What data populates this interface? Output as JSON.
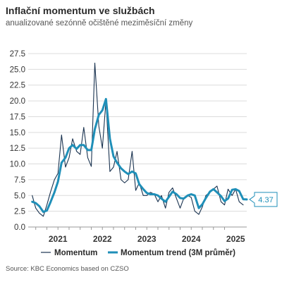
{
  "chart_data": {
    "type": "line",
    "title": "Inflační momentum ve službách",
    "subtitle": "anualizované sezónně očištěné meziměsíční změny",
    "source": "Source: KBC Economics based on CZSO",
    "y_ticks": [
      "0.0",
      "2.5",
      "5.0",
      "7.5",
      "10.0",
      "12.5",
      "15.0",
      "17.5",
      "20.0",
      "22.5",
      "25.0",
      "27.5"
    ],
    "ylim": [
      0,
      27.5
    ],
    "x_range": [
      2020.33,
      2025.25
    ],
    "x_ticks": [
      {
        "label": "2021",
        "value": 2021.0
      },
      {
        "label": "2022",
        "value": 2022.0
      },
      {
        "label": "2023",
        "value": 2023.0
      },
      {
        "label": "2024",
        "value": 2024.0
      },
      {
        "label": "2025",
        "value": 2025.0
      }
    ],
    "grid": true,
    "legend_position": "bottom",
    "colors": {
      "momentum": "#1a3350",
      "trend": "#1f8fb8"
    },
    "series": [
      {
        "name": "Momentum",
        "x": [
          2020.42,
          2020.5,
          2020.58,
          2020.67,
          2020.75,
          2020.83,
          2020.92,
          2021.0,
          2021.08,
          2021.17,
          2021.25,
          2021.33,
          2021.42,
          2021.5,
          2021.58,
          2021.67,
          2021.75,
          2021.83,
          2021.92,
          2022.0,
          2022.08,
          2022.17,
          2022.25,
          2022.33,
          2022.42,
          2022.5,
          2022.58,
          2022.67,
          2022.75,
          2022.83,
          2022.92,
          2023.0,
          2023.08,
          2023.17,
          2023.25,
          2023.33,
          2023.42,
          2023.5,
          2023.58,
          2023.67,
          2023.75,
          2023.83,
          2023.92,
          2024.0,
          2024.08,
          2024.17,
          2024.25,
          2024.33,
          2024.42,
          2024.5,
          2024.58,
          2024.67,
          2024.75,
          2024.83,
          2024.92,
          2025.0,
          2025.08,
          2025.17
        ],
        "values": [
          5.0,
          3.0,
          2.2,
          1.7,
          3.5,
          5.5,
          7.5,
          8.5,
          14.6,
          9.5,
          11.0,
          14.0,
          12.0,
          11.5,
          15.8,
          11.0,
          9.6,
          26.0,
          16.0,
          12.5,
          20.0,
          8.8,
          9.5,
          12.0,
          7.5,
          7.0,
          7.5,
          12.0,
          5.8,
          7.0,
          5.0,
          5.0,
          5.5,
          5.2,
          4.0,
          5.0,
          3.0,
          5.5,
          6.2,
          4.5,
          3.0,
          4.5,
          5.0,
          4.7,
          2.5,
          2.0,
          3.2,
          5.0,
          5.5,
          6.0,
          6.5,
          4.0,
          3.5,
          6.0,
          5.0,
          6.0,
          4.0,
          3.5
        ]
      },
      {
        "name": "Momentum trend (3M průměr)",
        "x": [
          2020.42,
          2020.5,
          2020.58,
          2020.67,
          2020.75,
          2020.83,
          2020.92,
          2021.0,
          2021.08,
          2021.17,
          2021.25,
          2021.33,
          2021.42,
          2021.5,
          2021.58,
          2021.67,
          2021.75,
          2021.83,
          2021.92,
          2022.0,
          2022.08,
          2022.17,
          2022.25,
          2022.33,
          2022.42,
          2022.5,
          2022.58,
          2022.67,
          2022.75,
          2022.83,
          2022.92,
          2023.0,
          2023.08,
          2023.17,
          2023.25,
          2023.33,
          2023.42,
          2023.5,
          2023.58,
          2023.67,
          2023.75,
          2023.83,
          2023.92,
          2024.0,
          2024.08,
          2024.17,
          2024.25,
          2024.33,
          2024.42,
          2024.5,
          2024.58,
          2024.67,
          2024.75,
          2024.83,
          2024.92,
          2025.0,
          2025.08,
          2025.17,
          2025.25
        ],
        "values": [
          4.0,
          3.8,
          3.3,
          2.4,
          2.6,
          3.9,
          5.5,
          7.2,
          10.2,
          11.0,
          12.5,
          13.0,
          12.4,
          13.0,
          13.0,
          12.2,
          12.2,
          15.5,
          17.8,
          18.5,
          20.3,
          14.0,
          11.2,
          10.2,
          9.3,
          8.8,
          8.4,
          8.8,
          8.5,
          6.8,
          6.0,
          5.4,
          5.2,
          5.2,
          5.0,
          4.5,
          4.0,
          4.8,
          5.6,
          5.2,
          4.6,
          4.5,
          5.0,
          5.2,
          5.0,
          3.0,
          3.6,
          4.6,
          5.6,
          6.0,
          5.5,
          4.9,
          4.1,
          4.5,
          5.9,
          6.0,
          5.7,
          4.4,
          4.37
        ]
      }
    ],
    "legend": [
      "Momentum",
      "Momentum trend (3M průměr)"
    ],
    "last_value_label": "4.37"
  }
}
